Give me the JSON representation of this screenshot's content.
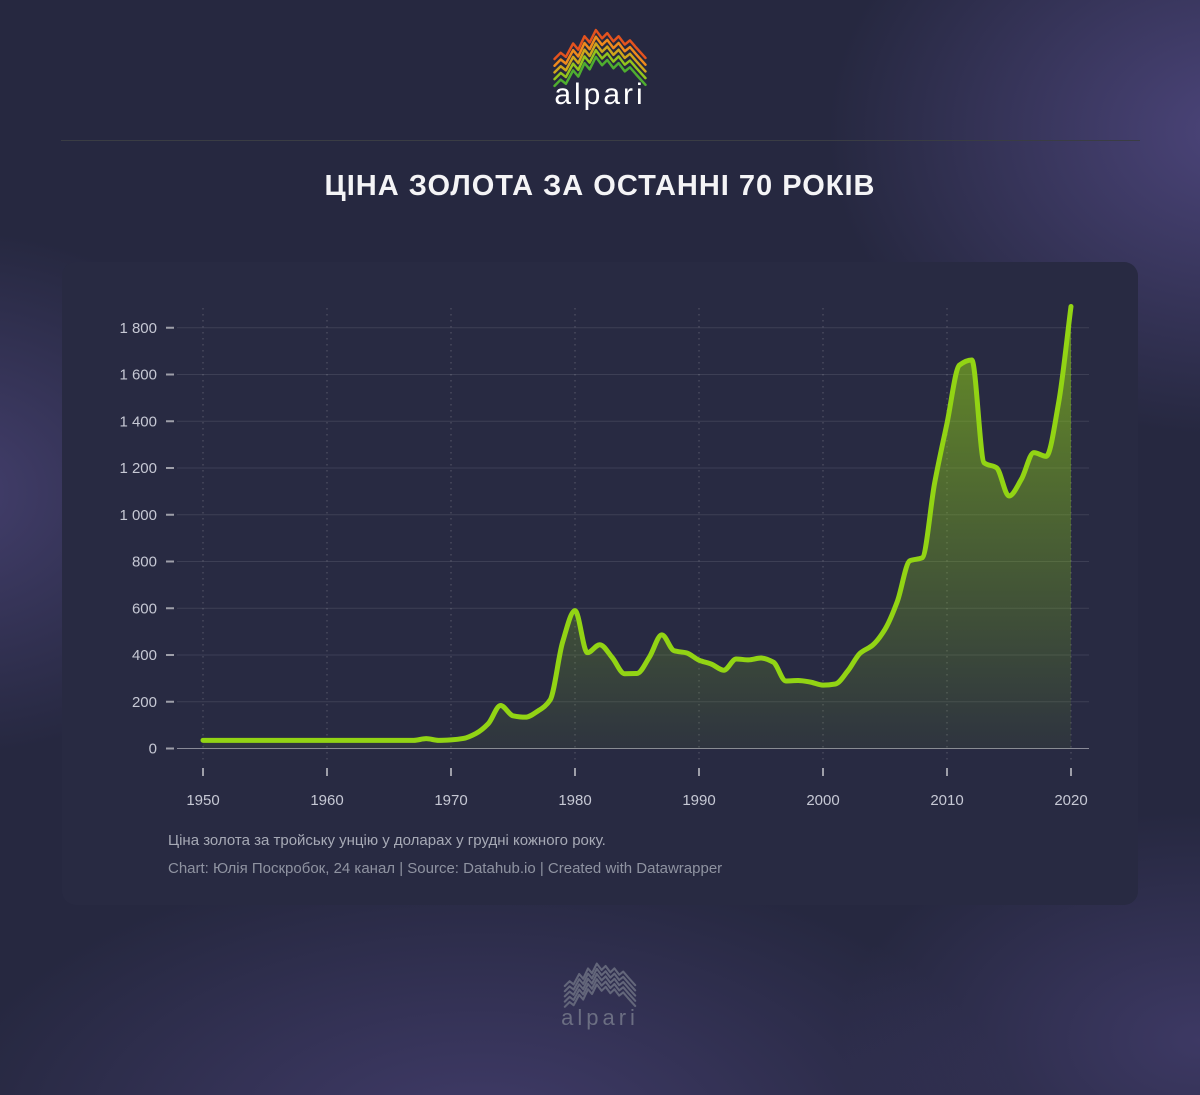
{
  "header": {
    "brand": "alpari"
  },
  "title": "ЦІНА ЗОЛОТА ЗА ОСТАННІ 70 РОКІВ",
  "chart_data": {
    "type": "area",
    "title": "ЦІНА ЗОЛОТА ЗА ОСТАННІ 70 РОКІВ",
    "x": [
      1950,
      1951,
      1952,
      1953,
      1954,
      1955,
      1956,
      1957,
      1958,
      1959,
      1960,
      1961,
      1962,
      1963,
      1964,
      1965,
      1966,
      1967,
      1968,
      1969,
      1970,
      1971,
      1972,
      1973,
      1974,
      1975,
      1976,
      1977,
      1978,
      1979,
      1980,
      1981,
      1982,
      1983,
      1984,
      1985,
      1986,
      1987,
      1988,
      1989,
      1990,
      1991,
      1992,
      1993,
      1994,
      1995,
      1996,
      1997,
      1998,
      1999,
      2000,
      2001,
      2002,
      2003,
      2004,
      2005,
      2006,
      2007,
      2008,
      2009,
      2010,
      2011,
      2012,
      2013,
      2014,
      2015,
      2016,
      2017,
      2018,
      2019,
      2020
    ],
    "series": [
      {
        "name": "Ціна золота, доларів за тройську унцію (грудень)",
        "values": [
          35,
          35,
          35,
          35,
          35,
          35,
          35,
          35,
          35,
          35,
          35,
          35,
          35,
          35,
          35,
          35,
          35,
          35,
          42,
          35,
          37,
          43,
          64,
          106,
          184,
          140,
          134,
          160,
          208,
          455,
          590,
          410,
          444,
          389,
          320,
          321,
          391,
          486,
          418,
          409,
          378,
          361,
          335,
          383,
          379,
          387,
          369,
          289,
          291,
          284,
          271,
          276,
          332,
          408,
          442,
          510,
          630,
          803,
          816,
          1135,
          1391,
          1640,
          1662,
          1222,
          1201,
          1080,
          1152,
          1266,
          1250,
          1479,
          1891
        ]
      }
    ],
    "ylim": [
      0,
      1900
    ],
    "yticks": [
      0,
      200,
      400,
      600,
      800,
      1000,
      1200,
      1400,
      1600,
      1800
    ],
    "ytick_labels": [
      "0",
      "200",
      "400",
      "600",
      "800",
      "1 000",
      "1 200",
      "1 400",
      "1 600",
      "1 800"
    ],
    "xticks": [
      1950,
      1960,
      1970,
      1980,
      1990,
      2000,
      2010,
      2020
    ],
    "xtick_labels": [
      "1950",
      "1960",
      "1970",
      "1980",
      "1990",
      "2000",
      "2010",
      "2020"
    ],
    "grid": {
      "horizontal": "solid",
      "vertical": "dotted",
      "legend": "none"
    },
    "colors": {
      "line": "#92d414",
      "fill_top": "rgba(146,212,20,0.60)",
      "fill_mid": "rgba(146,212,20,0.30)",
      "fill_bottom": "rgba(146,212,20,0.06)",
      "axis_label": "#c6c8d4"
    }
  },
  "panel_footer": {
    "note": "Ціна золота за тройську унцію у доларах у грудні кожного року.",
    "credit": "Chart: Юлія Поскробок, 24 канал | Source: Datahub.io | Created with Datawrapper"
  },
  "footer": {
    "brand": "alpari"
  },
  "logo": {
    "ridge_colors": [
      "#e4531e",
      "#ee8a1c",
      "#cfa61b",
      "#94c41c",
      "#4fae2f"
    ],
    "footer_color": "#63667a"
  }
}
